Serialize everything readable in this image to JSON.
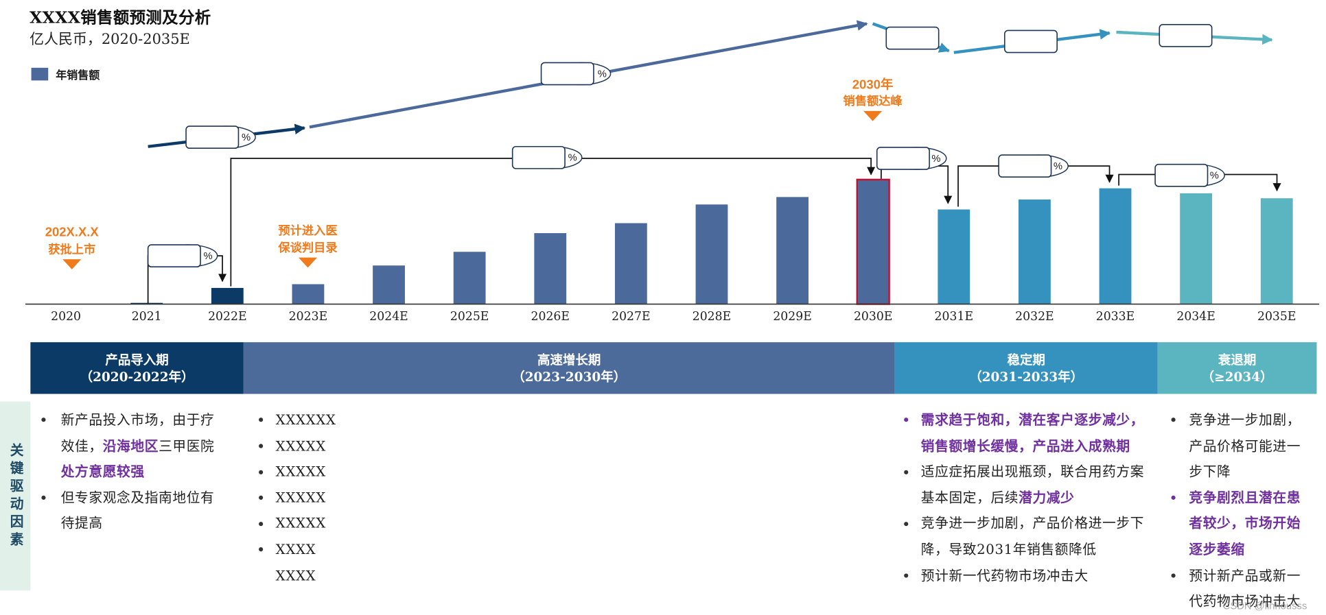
{
  "chart_data": {
    "type": "bar",
    "title": "XXXX销售额预测及分析",
    "subtitle": "亿人民币，2020-2035E",
    "categories": [
      "2020",
      "2021",
      "2022E",
      "2023E",
      "2024E",
      "2025E",
      "2026E",
      "2027E",
      "2028E",
      "2029E",
      "2030E",
      "2031E",
      "2032E",
      "2033E",
      "2034E",
      "2035E"
    ],
    "series": [
      {
        "name": "年销售额",
        "color": "#4B6A9B",
        "values": [
          0,
          1,
          13,
          16,
          31,
          42,
          57,
          65,
          80,
          86,
          100,
          76,
          84,
          93,
          89,
          85
        ]
      }
    ],
    "bar_colors": [
      "#0B3A67",
      "#0B3A67",
      "#0B3A67",
      "#4B6A9B",
      "#4B6A9B",
      "#4B6A9B",
      "#4B6A9B",
      "#4B6A9B",
      "#4B6A9B",
      "#4B6A9B",
      "#4B6A9B",
      "#3592BE",
      "#3592BE",
      "#3592BE",
      "#5BB5C0",
      "#5BB5C0"
    ],
    "highlight_category": "2030E",
    "highlight_color": "#C8102E",
    "xlabel": "",
    "ylabel": "",
    "ylim": [
      0,
      100
    ],
    "grid": false,
    "legend_position": "top-left"
  },
  "annotations": {
    "color": "#F07B1C",
    "approval": {
      "date": "202X.X.X",
      "text": "获批上市"
    },
    "reimbursement": {
      "line1": "预计进入医",
      "line2": "保谈判目录"
    },
    "peak": {
      "line1": "2030年",
      "line2": "销售额达峰"
    },
    "growth_rate_labels": [
      "%",
      "%",
      "%",
      "%",
      "%",
      "%",
      "%"
    ]
  },
  "phases": [
    {
      "name": "产品导入期",
      "period": "（2020-2022年）",
      "color": "#0B3A67"
    },
    {
      "name": "高速增长期",
      "period": "（2023-2030年）",
      "color": "#4C6B9B"
    },
    {
      "name": "稳定期",
      "period": "（2031-2033年）",
      "color": "#3592BE"
    },
    {
      "name": "衰退期",
      "period": "（≥2034）",
      "color": "#5BB5C0"
    }
  ],
  "drivers": {
    "label": "关键驱动因素",
    "emphasis_color": "#7030A0",
    "columns": [
      {
        "items": [
          {
            "lines": [
              [
                {
                  "text": "新产品投入市场，由于疗"
                }
              ],
              [
                {
                  "text": "效佳，"
                },
                {
                  "text": "沿海地区",
                  "em": true
                },
                {
                  "text": "三甲医院"
                }
              ],
              [
                {
                  "text": "处方意愿较强",
                  "em": true
                }
              ]
            ]
          },
          {
            "lines": [
              [
                {
                  "text": "但专家观念及指南地位有"
                }
              ],
              [
                {
                  "text": "待提高"
                }
              ]
            ]
          }
        ]
      },
      {
        "items": [
          {
            "lines": [
              [
                {
                  "text": "XXXXXX"
                }
              ]
            ]
          },
          {
            "lines": [
              [
                {
                  "text": "XXXXX"
                }
              ]
            ]
          },
          {
            "lines": [
              [
                {
                  "text": "XXXXX"
                }
              ]
            ]
          },
          {
            "lines": [
              [
                {
                  "text": "XXXXX"
                }
              ]
            ]
          },
          {
            "lines": [
              [
                {
                  "text": "XXXXX"
                }
              ]
            ]
          },
          {
            "lines": [
              [
                {
                  "text": "XXXX"
                }
              ],
              [
                {
                  "text": "XXXX"
                }
              ]
            ]
          }
        ]
      },
      {
        "items": [
          {
            "em_bullet": true,
            "lines": [
              [
                {
                  "text": "需求趋于饱和，潜在客户逐步减少，",
                  "em": true
                }
              ],
              [
                {
                  "text": "销售额增长缓慢，产品进入成熟期",
                  "em": true
                }
              ]
            ]
          },
          {
            "lines": [
              [
                {
                  "text": "适应症拓展出现瓶颈，联合用药方案"
                }
              ],
              [
                {
                  "text": "基本固定，后续"
                },
                {
                  "text": "潜力减少",
                  "em": true
                }
              ]
            ]
          },
          {
            "lines": [
              [
                {
                  "text": "竞争进一步加剧，产品价格进一步下"
                }
              ],
              [
                {
                  "text": "降，导致2031年销售额降低"
                }
              ]
            ]
          },
          {
            "lines": [
              [
                {
                  "text": "预计新一代药物市场冲击大"
                }
              ]
            ]
          }
        ]
      },
      {
        "items": [
          {
            "lines": [
              [
                {
                  "text": "竞争进一步加剧，"
                }
              ],
              [
                {
                  "text": "产品价格可能进一"
                }
              ],
              [
                {
                  "text": "步下降"
                }
              ]
            ]
          },
          {
            "em_bullet": true,
            "lines": [
              [
                {
                  "text": "竞争剧烈且潜在患",
                  "em": true
                }
              ],
              [
                {
                  "text": "者较少，市场开始",
                  "em": true
                }
              ],
              [
                {
                  "text": "逐步萎缩",
                  "em": true
                }
              ]
            ]
          },
          {
            "lines": [
              [
                {
                  "text": "预计新产品或新一"
                }
              ],
              [
                {
                  "text": "代药物市场冲击大"
                }
              ]
            ]
          }
        ]
      }
    ]
  },
  "watermark": "CSDN @linhousss"
}
